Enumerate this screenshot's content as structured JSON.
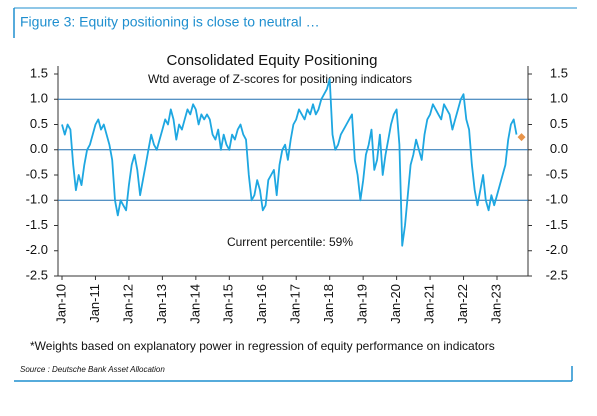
{
  "header": {
    "title": "Figure 3: Equity positioning is close to neutral …"
  },
  "chart_data": {
    "type": "line",
    "title": "Consolidated Equity Positioning",
    "subtitle": "Wtd average of Z-scores for positioning indicators",
    "annotation": "Current percentile: 59%",
    "categories": [
      "Jan-10",
      null,
      null,
      null,
      null,
      null,
      null,
      null,
      null,
      null,
      null,
      null,
      "Jan-11",
      null,
      null,
      null,
      null,
      null,
      null,
      null,
      null,
      null,
      null,
      null,
      "Jan-12",
      null,
      null,
      null,
      null,
      null,
      null,
      null,
      null,
      null,
      null,
      null,
      "Jan-13",
      null,
      null,
      null,
      null,
      null,
      null,
      null,
      null,
      null,
      null,
      null,
      "Jan-14",
      null,
      null,
      null,
      null,
      null,
      null,
      null,
      null,
      null,
      null,
      null,
      "Jan-15",
      null,
      null,
      null,
      null,
      null,
      null,
      null,
      null,
      null,
      null,
      null,
      "Jan-16",
      null,
      null,
      null,
      null,
      null,
      null,
      null,
      null,
      null,
      null,
      null,
      "Jan-17",
      null,
      null,
      null,
      null,
      null,
      null,
      null,
      null,
      null,
      null,
      null,
      "Jan-18",
      null,
      null,
      null,
      null,
      null,
      null,
      null,
      null,
      null,
      null,
      null,
      "Jan-19",
      null,
      null,
      null,
      null,
      null,
      null,
      null,
      null,
      null,
      null,
      null,
      "Jan-20",
      null,
      null,
      null,
      null,
      null,
      null,
      null,
      null,
      null,
      null,
      null,
      "Jan-21",
      null,
      null,
      null,
      null,
      null,
      null,
      null,
      null,
      null,
      null,
      null,
      "Jan-22",
      null,
      null,
      null,
      null,
      null,
      null,
      null,
      null,
      null,
      null,
      null,
      "Jan-23",
      null,
      null,
      null,
      null,
      null,
      null,
      null
    ],
    "series": [
      {
        "color": "#1ea7e1",
        "values": [
          0.5,
          0.3,
          0.5,
          0.4,
          -0.3,
          -0.8,
          -0.5,
          -0.7,
          -0.3,
          0.0,
          0.1,
          0.3,
          0.5,
          0.6,
          0.4,
          0.5,
          0.3,
          0.1,
          -0.2,
          -1.0,
          -1.3,
          -1.0,
          -1.1,
          -1.2,
          -0.7,
          -0.3,
          -0.1,
          -0.4,
          -0.9,
          -0.6,
          -0.3,
          0.0,
          0.3,
          0.1,
          0.0,
          0.2,
          0.4,
          0.6,
          0.5,
          0.8,
          0.6,
          0.2,
          0.5,
          0.4,
          0.6,
          0.8,
          0.7,
          0.9,
          0.8,
          0.5,
          0.7,
          0.6,
          0.7,
          0.6,
          0.3,
          0.2,
          0.4,
          0.0,
          0.3,
          0.1,
          0.0,
          0.3,
          0.2,
          0.4,
          0.5,
          0.3,
          0.2,
          -0.5,
          -1.0,
          -0.9,
          -0.6,
          -0.8,
          -1.2,
          -1.1,
          -0.6,
          -0.5,
          -0.4,
          -0.9,
          -0.3,
          0.0,
          0.1,
          -0.2,
          0.2,
          0.5,
          0.6,
          0.8,
          0.7,
          0.6,
          0.8,
          0.7,
          0.9,
          0.7,
          0.8,
          1.0,
          1.1,
          1.2,
          1.4,
          0.3,
          0.0,
          0.1,
          0.3,
          0.4,
          0.5,
          0.6,
          0.7,
          -0.2,
          -0.5,
          -1.0,
          -0.6,
          -0.1,
          0.1,
          0.4,
          -0.4,
          -0.2,
          0.3,
          -0.5,
          -0.1,
          0.2,
          0.5,
          0.7,
          0.8,
          0.1,
          -1.9,
          -1.5,
          -0.9,
          -0.3,
          -0.1,
          0.2,
          0.0,
          -0.2,
          0.3,
          0.6,
          0.7,
          0.9,
          0.8,
          0.7,
          0.6,
          0.9,
          0.8,
          0.7,
          0.4,
          0.6,
          0.8,
          1.0,
          1.1,
          0.6,
          0.4,
          -0.3,
          -0.8,
          -1.1,
          -0.8,
          -0.5,
          -1.0,
          -1.2,
          -0.9,
          -1.1,
          -0.9,
          -0.7,
          -0.5,
          -0.3,
          0.2,
          0.5,
          0.6,
          0.3
        ]
      }
    ],
    "current_marker": {
      "value": 0.25,
      "color": "#e8944a"
    },
    "ylim": [
      -2.5,
      1.5
    ],
    "yticks": [
      {
        "value": -2.5,
        "label": "-2.5"
      },
      {
        "value": -2,
        "label": "-2.0"
      },
      {
        "value": -1.5,
        "label": "-1.5"
      },
      {
        "value": -1,
        "label": "-1.0"
      },
      {
        "value": -0.5,
        "label": "-0.5"
      },
      {
        "value": 0,
        "label": "0.0"
      },
      {
        "value": 0.5,
        "label": "0.5"
      },
      {
        "value": 1,
        "label": "1.0"
      },
      {
        "value": 1.5,
        "label": "1.5"
      }
    ],
    "reference_lines": [
      -1,
      0,
      1
    ],
    "footnote": "*Weights based on explanatory power in regression of equity performance on indicators",
    "source": "Source : Deutsche Bank Asset Allocation"
  }
}
